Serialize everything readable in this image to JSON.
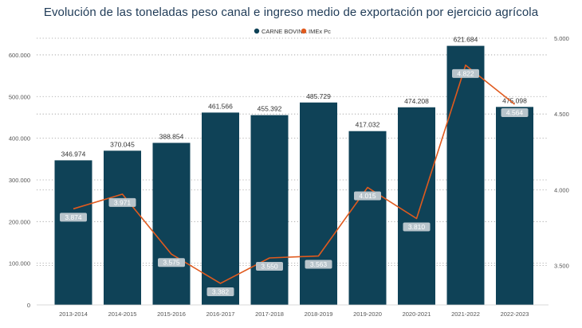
{
  "chart_data": {
    "type": "bar+line",
    "title": "Evolución de las toneladas peso canal e ingreso medio de exportación por ejercicio agrícola",
    "categories": [
      "2013-2014",
      "2014-2015",
      "2015-2016",
      "2016-2017",
      "2017-2018",
      "2018-2019",
      "2019-2020",
      "2020-2021",
      "2021-2022",
      "2022-2023"
    ],
    "series": [
      {
        "name": "CARNE BOVINA",
        "type": "bar",
        "axis": "left",
        "color": "#0f4257",
        "values": [
          346974,
          370045,
          388854,
          461566,
          455392,
          485729,
          417032,
          474208,
          621684,
          475098
        ],
        "value_labels": [
          "346.974",
          "370.045",
          "388.854",
          "461.566",
          "455.392",
          "485.729",
          "417.032",
          "474.208",
          "621.684",
          "475.098"
        ]
      },
      {
        "name": "IMEx Pc",
        "type": "line",
        "axis": "right",
        "color": "#e05a1e",
        "values": [
          3874,
          3971,
          3575,
          3382,
          3550,
          3563,
          4015,
          3810,
          4822,
          4564
        ],
        "value_labels": [
          "3.874",
          "3.971",
          "3.575",
          "3.382",
          "3.550",
          "3.563",
          "4.015",
          "3.810",
          "4.822",
          "4.564"
        ]
      }
    ],
    "y_left": {
      "range": [
        0,
        640000
      ],
      "ticks": [
        0,
        100000,
        200000,
        300000,
        400000,
        500000,
        600000
      ],
      "tick_labels": [
        "0",
        "100.000",
        "200.000",
        "300.000",
        "400.000",
        "500.000",
        "600.000"
      ]
    },
    "y_right": {
      "range": [
        3240,
        5000
      ],
      "ticks": [
        3500,
        4000,
        4500,
        5000
      ],
      "tick_labels": [
        "3.500",
        "4.000",
        "4.500",
        "5.000"
      ]
    },
    "grid": true,
    "legend_position": "top-center"
  }
}
